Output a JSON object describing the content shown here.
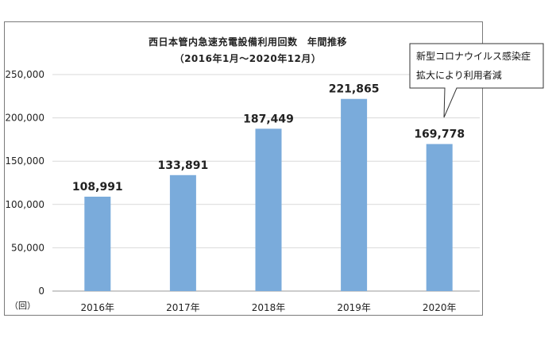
{
  "chart_data": {
    "type": "bar",
    "title": "西日本管内急速充電設備利用回数　年間推移",
    "subtitle": "（2016年1月～2020年12月）",
    "categories": [
      "2016年",
      "2017年",
      "2018年",
      "2019年",
      "2020年"
    ],
    "values": [
      108991,
      133891,
      187449,
      221865,
      169778
    ],
    "data_labels": [
      "108,991",
      "133,891",
      "187,449",
      "221,865",
      "169,778"
    ],
    "y_ticks": [
      "0",
      "50,000",
      "100,000",
      "150,000",
      "200,000",
      "250,000"
    ],
    "y_tick_values": [
      0,
      50000,
      100000,
      150000,
      200000,
      250000
    ],
    "ylim": [
      0,
      250000
    ],
    "unit_label": "（回）",
    "grid": true,
    "bar_color": "#7aabdb",
    "annotation": {
      "line1": "新型コロナウイルス感染症",
      "line2": "拡大により利用者減"
    }
  }
}
